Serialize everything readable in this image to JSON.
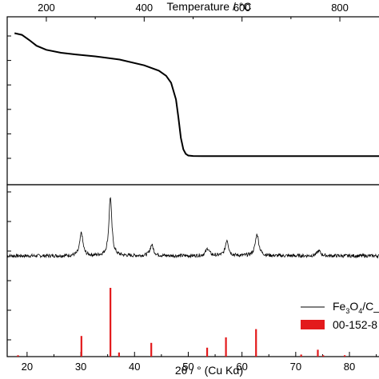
{
  "colors": {
    "axis": "#000000",
    "trace": "#000000",
    "reference": "#e31a1c"
  },
  "chart_data": [
    {
      "type": "line",
      "panel": "TGA (top)",
      "xlabel": "Temperature / °C",
      "x_ticks": [
        "200",
        "400",
        "600",
        "800"
      ],
      "xlim": [
        120,
        880
      ],
      "ylim": [
        0,
        1
      ],
      "y_tick_labels_visible": false,
      "series": [
        {
          "x": [
            135,
            150,
            165,
            180,
            200,
            230,
            260,
            300,
            350,
            400,
            430,
            445,
            455,
            465,
            470,
            475,
            480,
            485,
            490,
            500,
            520,
            560,
            600,
            650,
            700,
            750,
            800,
            850,
            880
          ],
          "y": [
            0.978,
            0.965,
            0.925,
            0.88,
            0.848,
            0.825,
            0.812,
            0.797,
            0.772,
            0.727,
            0.685,
            0.645,
            0.59,
            0.46,
            0.32,
            0.16,
            0.07,
            0.035,
            0.022,
            0.018,
            0.017,
            0.017,
            0.017,
            0.017,
            0.017,
            0.017,
            0.017,
            0.017,
            0.017
          ]
        }
      ]
    },
    {
      "type": "line",
      "panel": "XRD (bottom)",
      "xlabel": "2θ / ° (Cu Kα)",
      "x_ticks": [
        "20",
        "30",
        "40",
        "50",
        "60",
        "70",
        "80"
      ],
      "xlim": [
        16.3,
        85.5
      ],
      "ylim": [
        0,
        1
      ],
      "y_tick_labels_visible": false,
      "legend_position": "bottom-right",
      "series": [
        {
          "name": "Fe3O4/C_",
          "display_base": "Fe",
          "display_sub1": "3",
          "display_mid": "O",
          "display_sub2": "4",
          "display_tail": "/C_",
          "style": "line",
          "baseline": 0.12,
          "noise": 0.012,
          "peaks": [
            {
              "x": 30.1,
              "height": 0.16,
              "width": 0.35
            },
            {
              "x": 35.5,
              "height": 0.41,
              "width": 0.32
            },
            {
              "x": 43.2,
              "height": 0.075,
              "width": 0.4
            },
            {
              "x": 53.6,
              "height": 0.05,
              "width": 0.4
            },
            {
              "x": 57.2,
              "height": 0.11,
              "width": 0.35
            },
            {
              "x": 62.8,
              "height": 0.15,
              "width": 0.4
            },
            {
              "x": 74.3,
              "height": 0.035,
              "width": 0.4
            }
          ]
        },
        {
          "name": "00-152-8",
          "style": "sticks",
          "sticks": [
            {
              "x": 18.3,
              "height": 0.02
            },
            {
              "x": 30.1,
              "height": 0.3
            },
            {
              "x": 35.5,
              "height": 1.0
            },
            {
              "x": 37.1,
              "height": 0.06
            },
            {
              "x": 43.1,
              "height": 0.2
            },
            {
              "x": 53.5,
              "height": 0.13
            },
            {
              "x": 57.0,
              "height": 0.28
            },
            {
              "x": 62.6,
              "height": 0.4
            },
            {
              "x": 71.0,
              "height": 0.03
            },
            {
              "x": 74.1,
              "height": 0.1
            },
            {
              "x": 75.1,
              "height": 0.02
            },
            {
              "x": 79.1,
              "height": 0.02
            }
          ]
        }
      ]
    }
  ]
}
